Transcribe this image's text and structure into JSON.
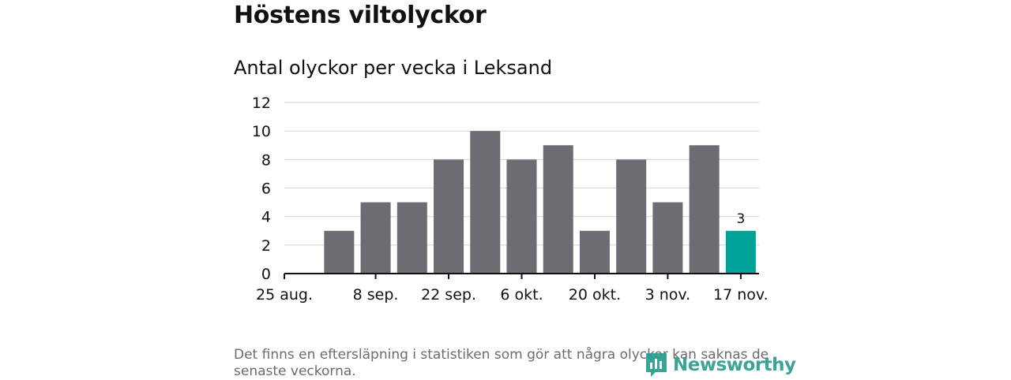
{
  "header": {
    "title": "Höstens viltolyckor",
    "subtitle": "Antal olyckor per vecka i Leksand"
  },
  "footnote": "Det finns en eftersläpning i statistiken som gör att några olyckor kan saknas de senaste veckorna.",
  "logo": {
    "text": "Newsworthy"
  },
  "colors": {
    "bar": "#6d6c72",
    "highlight": "#00a398",
    "grid": "#d9d9d9",
    "axis": "#111111"
  },
  "chart_data": {
    "type": "bar",
    "categories": [
      "25 aug.",
      "1 sep.",
      "8 sep.",
      "15 sep.",
      "22 sep.",
      "29 sep.",
      "6 okt.",
      "13 okt.",
      "20 okt.",
      "27 okt.",
      "3 nov.",
      "10 nov.",
      "17 nov."
    ],
    "values": [
      null,
      3,
      5,
      5,
      8,
      10,
      8,
      9,
      3,
      8,
      5,
      9,
      3
    ],
    "highlight_index": 12,
    "data_label": "3",
    "x_tick_labels": [
      "25 aug.",
      "8 sep.",
      "22 sep.",
      "6 okt.",
      "20 okt.",
      "3 nov.",
      "17 nov."
    ],
    "y_ticks": [
      "0",
      "2",
      "4",
      "6",
      "8",
      "10",
      "12"
    ],
    "ylim": [
      0,
      12
    ],
    "grid": true
  }
}
